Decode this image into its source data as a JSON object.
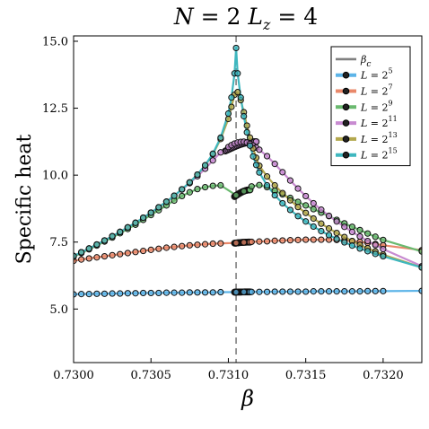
{
  "chart_data": {
    "type": "line",
    "title": "N = 2  L_z = 4",
    "title_parts": {
      "n": "N",
      "n_val": "= 2",
      "l": "L",
      "l_sub": "z",
      "l_val": "= 4"
    },
    "xlabel": "β",
    "ylabel": "Specific heat",
    "xlim": [
      0.73,
      0.73225
    ],
    "ylim": [
      3.0,
      15.2
    ],
    "x_ticks": [
      0.73,
      0.7305,
      0.731,
      0.7315,
      0.732
    ],
    "x_tick_labels": [
      "0.7300",
      "0.7305",
      "0.7310",
      "0.7315",
      "0.7320"
    ],
    "y_ticks": [
      5.0,
      7.5,
      10.0,
      12.5,
      15.0
    ],
    "y_tick_labels": [
      "5.0",
      "7.5",
      "10.0",
      "12.5",
      "15.0"
    ],
    "grid": false,
    "legend_position": "top-right",
    "beta_c": {
      "label": "β_c",
      "value": 0.73105,
      "color": "#808080"
    },
    "series": [
      {
        "name": "L = 2^5",
        "base": "L = 2",
        "exp": "5",
        "color": "#5cb4e8",
        "x": [
          0.73,
          0.73005,
          0.7301,
          0.73015,
          0.7302,
          0.73025,
          0.7303,
          0.73035,
          0.7304,
          0.73045,
          0.7305,
          0.73055,
          0.7306,
          0.73065,
          0.7307,
          0.73075,
          0.7308,
          0.73085,
          0.7309,
          0.73095,
          0.73105,
          0.7311,
          0.73115,
          0.7312,
          0.73125,
          0.7313,
          0.73135,
          0.7314,
          0.73145,
          0.7315,
          0.73155,
          0.7316,
          0.73165,
          0.7317,
          0.73175,
          0.7318,
          0.73185,
          0.7319,
          0.73195,
          0.732,
          0.73225
        ],
        "y": [
          5.55,
          5.56,
          5.56,
          5.57,
          5.57,
          5.58,
          5.58,
          5.59,
          5.59,
          5.6,
          5.6,
          5.6,
          5.61,
          5.61,
          5.61,
          5.62,
          5.62,
          5.62,
          5.62,
          5.63,
          5.63,
          5.64,
          5.64,
          5.64,
          5.64,
          5.65,
          5.65,
          5.65,
          5.65,
          5.65,
          5.66,
          5.66,
          5.66,
          5.66,
          5.66,
          5.66,
          5.66,
          5.67,
          5.67,
          5.67,
          5.68
        ],
        "markers": true
      },
      {
        "name": "L = 2^7",
        "base": "L = 2",
        "exp": "7",
        "color": "#e9886a",
        "x": [
          0.73,
          0.73005,
          0.7301,
          0.73015,
          0.7302,
          0.73025,
          0.7303,
          0.73035,
          0.7304,
          0.73045,
          0.7305,
          0.73055,
          0.7306,
          0.73065,
          0.7307,
          0.73075,
          0.7308,
          0.73085,
          0.7309,
          0.73095,
          0.73105,
          0.7311,
          0.73115,
          0.7312,
          0.73125,
          0.7313,
          0.73135,
          0.7314,
          0.73145,
          0.7315,
          0.73155,
          0.7316,
          0.73165,
          0.7317,
          0.73175,
          0.7318,
          0.73185,
          0.7319,
          0.73195,
          0.732,
          0.73225
        ],
        "y": [
          6.8,
          6.85,
          6.89,
          6.93,
          6.97,
          7.01,
          7.05,
          7.09,
          7.13,
          7.17,
          7.21,
          7.25,
          7.29,
          7.32,
          7.35,
          7.38,
          7.4,
          7.42,
          7.44,
          7.45,
          7.47,
          7.49,
          7.51,
          7.52,
          7.53,
          7.55,
          7.56,
          7.57,
          7.58,
          7.59,
          7.59,
          7.59,
          7.59,
          7.58,
          7.56,
          7.54,
          7.51,
          7.47,
          7.43,
          7.38,
          7.2
        ],
        "markers": true
      },
      {
        "name": "L = 2^9",
        "base": "L = 2",
        "exp": "9",
        "color": "#6ab96f",
        "x": [
          0.73,
          0.73005,
          0.7301,
          0.73015,
          0.7302,
          0.73025,
          0.7303,
          0.73035,
          0.7304,
          0.73045,
          0.7305,
          0.73055,
          0.7306,
          0.73065,
          0.7307,
          0.73075,
          0.7308,
          0.73085,
          0.7309,
          0.73095,
          0.73105,
          0.7311,
          0.73115,
          0.7312,
          0.73125,
          0.7313,
          0.73135,
          0.7314,
          0.73145,
          0.7315,
          0.73155,
          0.7316,
          0.73165,
          0.7317,
          0.73175,
          0.7318,
          0.73185,
          0.7319,
          0.73195,
          0.732,
          0.73225
        ],
        "y": [
          6.95,
          7.09,
          7.23,
          7.37,
          7.52,
          7.67,
          7.83,
          7.99,
          8.15,
          8.33,
          8.51,
          8.69,
          8.87,
          9.05,
          9.22,
          9.36,
          9.48,
          9.55,
          9.6,
          9.62,
          9.25,
          9.4,
          9.58,
          9.63,
          9.55,
          9.42,
          9.28,
          9.15,
          9.0,
          8.87,
          8.73,
          8.6,
          8.47,
          8.33,
          8.2,
          8.07,
          7.95,
          7.82,
          7.7,
          7.58,
          7.15
        ],
        "markers": true
      },
      {
        "name": "L = 2^11",
        "base": "L = 2",
        "exp": "11",
        "color": "#c88bd1",
        "x": [
          0.73,
          0.73005,
          0.7301,
          0.73015,
          0.7302,
          0.73025,
          0.7303,
          0.73035,
          0.7304,
          0.73045,
          0.7305,
          0.73055,
          0.7306,
          0.73065,
          0.7307,
          0.73075,
          0.7308,
          0.73085,
          0.7309,
          0.73095,
          0.731,
          0.73102,
          0.73104,
          0.73106,
          0.73108,
          0.7311,
          0.73112,
          0.73114,
          0.73116,
          0.73118,
          0.7312,
          0.73125,
          0.7313,
          0.73135,
          0.7314,
          0.73145,
          0.7315,
          0.73155,
          0.7316,
          0.73165,
          0.7317,
          0.73175,
          0.7318,
          0.73185,
          0.7319,
          0.73195,
          0.732,
          0.73225
        ],
        "y": [
          6.98,
          7.12,
          7.26,
          7.41,
          7.56,
          7.72,
          7.88,
          8.05,
          8.22,
          8.41,
          8.6,
          8.8,
          9.01,
          9.23,
          9.46,
          9.7,
          9.96,
          10.24,
          10.55,
          10.85,
          11.05,
          11.12,
          11.18,
          11.22,
          11.24,
          11.25,
          11.22,
          11.17,
          11.11,
          11.03,
          10.95,
          10.71,
          10.42,
          10.11,
          9.8,
          9.5,
          9.22,
          8.95,
          8.71,
          8.48,
          8.27,
          8.07,
          7.88,
          7.71,
          7.54,
          7.39,
          7.24,
          6.6
        ],
        "markers": true
      },
      {
        "name": "L = 2^13",
        "base": "L = 2",
        "exp": "13",
        "color": "#b3a84e",
        "x": [
          0.73,
          0.73005,
          0.7301,
          0.73015,
          0.7302,
          0.73025,
          0.7303,
          0.73035,
          0.7304,
          0.73045,
          0.7305,
          0.73055,
          0.7306,
          0.73065,
          0.7307,
          0.73075,
          0.7308,
          0.73085,
          0.7309,
          0.73095,
          0.731,
          0.73102,
          0.73104,
          0.73106,
          0.73108,
          0.7311,
          0.73112,
          0.73114,
          0.73116,
          0.73118,
          0.7312,
          0.73125,
          0.7313,
          0.73135,
          0.7314,
          0.73145,
          0.7315,
          0.73155,
          0.7316,
          0.73165,
          0.7317,
          0.73175,
          0.7318,
          0.73185,
          0.7319,
          0.73195,
          0.732,
          0.73225
        ],
        "y": [
          6.98,
          7.12,
          7.26,
          7.41,
          7.56,
          7.72,
          7.88,
          8.05,
          8.22,
          8.41,
          8.6,
          8.8,
          9.01,
          9.23,
          9.47,
          9.73,
          10.02,
          10.36,
          10.78,
          11.35,
          12.1,
          12.55,
          13.0,
          13.1,
          12.8,
          12.35,
          11.85,
          11.4,
          11.0,
          10.65,
          10.35,
          9.95,
          9.62,
          9.33,
          9.06,
          8.81,
          8.59,
          8.38,
          8.19,
          8.01,
          7.84,
          7.69,
          7.54,
          7.4,
          7.27,
          7.15,
          7.03,
          6.55
        ],
        "markers": true
      },
      {
        "name": "L = 2^15",
        "base": "L = 2",
        "exp": "15",
        "color": "#3fb7bf",
        "x": [
          0.73,
          0.73005,
          0.7301,
          0.73015,
          0.7302,
          0.73025,
          0.7303,
          0.73035,
          0.7304,
          0.73045,
          0.7305,
          0.73055,
          0.7306,
          0.73065,
          0.7307,
          0.73075,
          0.7308,
          0.73085,
          0.7309,
          0.73095,
          0.731,
          0.73102,
          0.73104,
          0.73105,
          0.73106,
          0.73108,
          0.7311,
          0.73112,
          0.73114,
          0.73116,
          0.73118,
          0.7312,
          0.73125,
          0.7313,
          0.73135,
          0.7314,
          0.73145,
          0.7315,
          0.73155,
          0.7316,
          0.73165,
          0.7317,
          0.73175,
          0.7318,
          0.73185,
          0.7319,
          0.73195,
          0.732,
          0.73225
        ],
        "y": [
          6.98,
          7.12,
          7.26,
          7.41,
          7.56,
          7.72,
          7.88,
          8.05,
          8.22,
          8.41,
          8.6,
          8.8,
          9.01,
          9.23,
          9.47,
          9.73,
          10.02,
          10.37,
          10.8,
          11.4,
          12.3,
          12.9,
          13.8,
          14.75,
          13.8,
          12.9,
          12.2,
          11.6,
          11.1,
          10.7,
          10.38,
          10.1,
          9.62,
          9.25,
          8.95,
          8.7,
          8.47,
          8.27,
          8.08,
          7.91,
          7.76,
          7.62,
          7.49,
          7.37,
          7.26,
          7.16,
          7.06,
          6.97,
          6.55
        ],
        "markers": true
      }
    ],
    "dense_clusters": [
      {
        "series": "L = 2^5",
        "x_range": [
          0.73104,
          0.73114
        ],
        "y_range": [
          5.63,
          5.64
        ]
      },
      {
        "series": "L = 2^7",
        "x_range": [
          0.73104,
          0.73114
        ],
        "y_range": [
          7.46,
          7.5
        ]
      },
      {
        "series": "L = 2^9",
        "x_range": [
          0.73104,
          0.73114
        ],
        "y_range": [
          9.2,
          9.45
        ]
      },
      {
        "series": "L = 2^11",
        "x_range": [
          0.73098,
          0.73118
        ],
        "y_range": [
          10.9,
          11.25
        ]
      }
    ]
  }
}
